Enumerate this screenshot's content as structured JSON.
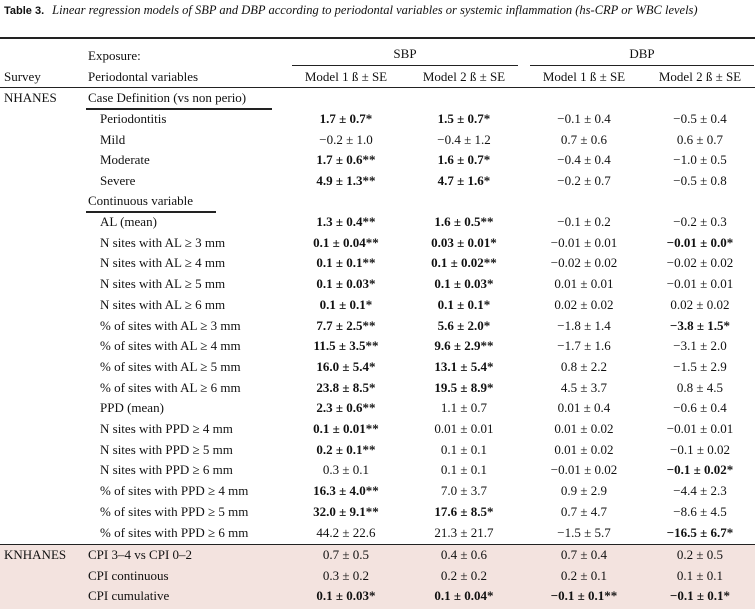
{
  "table": {
    "label": "Table 3.",
    "caption": "Linear regression models of SBP and DBP according to periodontal variables or systemic inflammation (hs-CRP or WBC levels)",
    "headers": {
      "exposure": "Exposure:",
      "survey": "Survey",
      "periodontal_variables": "Periodontal variables",
      "sbp": "SBP",
      "dbp": "DBP",
      "sbp_model1": "Model 1 ß ± SE",
      "sbp_model2": "Model 2 ß ± SE",
      "dbp_model1": "Model 1 ß ± SE",
      "dbp_model2": "Model 2 ß ± SE"
    },
    "surveys": [
      "NHANES",
      "KNHANES"
    ],
    "sections": [
      "Case Definition (vs non perio)",
      "Continuous variable"
    ],
    "rows": [
      {
        "var": "Periodontitis",
        "c": [
          "1.7 ± 0.7*",
          "1.5 ± 0.7*",
          "−0.1 ± 0.4",
          "−0.5 ± 0.4"
        ],
        "b": [
          1,
          1,
          0,
          0
        ]
      },
      {
        "var": "Mild",
        "c": [
          "−0.2 ± 1.0",
          "−0.4 ± 1.2",
          "0.7 ± 0.6",
          "0.6 ± 0.7"
        ],
        "b": [
          0,
          0,
          0,
          0
        ]
      },
      {
        "var": "Moderate",
        "c": [
          "1.7 ± 0.6**",
          "1.6 ± 0.7*",
          "−0.4 ± 0.4",
          "−1.0 ± 0.5"
        ],
        "b": [
          1,
          1,
          0,
          0
        ]
      },
      {
        "var": "Severe",
        "c": [
          "4.9 ± 1.3**",
          "4.7 ± 1.6*",
          "−0.2 ± 0.7",
          "−0.5 ± 0.8"
        ],
        "b": [
          1,
          1,
          0,
          0
        ]
      },
      {
        "var": "AL (mean)",
        "c": [
          "1.3 ± 0.4**",
          "1.6 ± 0.5**",
          "−0.1 ± 0.2",
          "−0.2 ± 0.3"
        ],
        "b": [
          1,
          1,
          0,
          0
        ]
      },
      {
        "var": "N sites with AL ≥ 3 mm",
        "c": [
          "0.1 ± 0.04**",
          "0.03 ± 0.01*",
          "−0.01 ± 0.01",
          "−0.01 ± 0.0*"
        ],
        "b": [
          1,
          1,
          0,
          1
        ]
      },
      {
        "var": "N sites with AL ≥ 4 mm",
        "c": [
          "0.1 ± 0.1**",
          "0.1 ± 0.02**",
          "−0.02 ± 0.02",
          "−0.02 ± 0.02"
        ],
        "b": [
          1,
          1,
          0,
          0
        ]
      },
      {
        "var": "N sites with AL ≥ 5 mm",
        "c": [
          "0.1 ± 0.03*",
          "0.1 ± 0.03*",
          "0.01 ± 0.01",
          "−0.01 ± 0.01"
        ],
        "b": [
          1,
          1,
          0,
          0
        ]
      },
      {
        "var": "N sites with AL ≥ 6 mm",
        "c": [
          "0.1 ± 0.1*",
          "0.1 ± 0.1*",
          "0.02 ± 0.02",
          "0.02 ± 0.02"
        ],
        "b": [
          1,
          1,
          0,
          0
        ]
      },
      {
        "var": "% of sites with AL ≥ 3 mm",
        "c": [
          "7.7 ± 2.5**",
          "5.6 ± 2.0*",
          "−1.8 ± 1.4",
          "−3.8 ± 1.5*"
        ],
        "b": [
          1,
          1,
          0,
          1
        ]
      },
      {
        "var": "% of sites with AL ≥ 4 mm",
        "c": [
          "11.5 ± 3.5**",
          "9.6 ± 2.9**",
          "−1.7 ± 1.6",
          "−3.1 ± 2.0"
        ],
        "b": [
          1,
          1,
          0,
          0
        ]
      },
      {
        "var": "% of sites with AL ≥ 5 mm",
        "c": [
          "16.0 ± 5.4*",
          "13.1 ± 5.4*",
          "0.8 ± 2.2",
          "−1.5 ± 2.9"
        ],
        "b": [
          1,
          1,
          0,
          0
        ]
      },
      {
        "var": "% of sites with AL ≥ 6 mm",
        "c": [
          "23.8 ± 8.5*",
          "19.5 ± 8.9*",
          "4.5 ± 3.7",
          "0.8 ± 4.5"
        ],
        "b": [
          1,
          1,
          0,
          0
        ]
      },
      {
        "var": "PPD (mean)",
        "c": [
          "2.3 ± 0.6**",
          "1.1 ± 0.7",
          "0.01 ± 0.4",
          "−0.6 ± 0.4"
        ],
        "b": [
          1,
          0,
          0,
          0
        ]
      },
      {
        "var": "N sites with PPD ≥ 4 mm",
        "c": [
          "0.1 ± 0.01**",
          "0.01 ± 0.01",
          "0.01 ± 0.02",
          "−0.01 ± 0.01"
        ],
        "b": [
          1,
          0,
          0,
          0
        ]
      },
      {
        "var": "N sites with PPD ≥ 5 mm",
        "c": [
          "0.2 ± 0.1**",
          "0.1 ± 0.1",
          "0.01 ± 0.02",
          "−0.1 ± 0.02"
        ],
        "b": [
          1,
          0,
          0,
          0
        ]
      },
      {
        "var": "N sites with PPD ≥ 6 mm",
        "c": [
          "0.3 ± 0.1",
          "0.1 ± 0.1",
          "−0.01 ± 0.02",
          "−0.1 ± 0.02*"
        ],
        "b": [
          0,
          0,
          0,
          1
        ]
      },
      {
        "var": "% of sites with PPD ≥ 4 mm",
        "c": [
          "16.3 ± 4.0**",
          "7.0 ± 3.7",
          "0.9 ± 2.9",
          "−4.4 ± 2.3"
        ],
        "b": [
          1,
          0,
          0,
          0
        ]
      },
      {
        "var": "% of sites with PPD ≥ 5 mm",
        "c": [
          "32.0 ± 9.1**",
          "17.6 ± 8.5*",
          "0.7 ± 4.7",
          "−8.6 ± 4.5"
        ],
        "b": [
          1,
          1,
          0,
          0
        ]
      },
      {
        "var": "% of sites with PPD ≥ 6 mm",
        "c": [
          "44.2 ± 22.6",
          "21.3 ± 21.7",
          "−1.5 ± 5.7",
          "−16.5 ± 6.7*"
        ],
        "b": [
          0,
          0,
          0,
          1
        ]
      },
      {
        "var": "CPI 3–4 vs CPI 0–2",
        "c": [
          "0.7 ± 0.5",
          "0.4 ± 0.6",
          "0.7 ± 0.4",
          "0.2 ± 0.5"
        ],
        "b": [
          0,
          0,
          0,
          0
        ]
      },
      {
        "var": "CPI continuous",
        "c": [
          "0.3 ± 0.2",
          "0.2 ± 0.2",
          "0.2 ± 0.1",
          "0.1 ± 0.1"
        ],
        "b": [
          0,
          0,
          0,
          0
        ]
      },
      {
        "var": "CPI cumulative",
        "c": [
          "0.1 ± 0.03*",
          "0.1 ± 0.04*",
          "−0.1 ± 0.1**",
          "−0.1 ± 0.1*"
        ],
        "b": [
          1,
          1,
          1,
          1
        ]
      }
    ],
    "colors": {
      "knhanes_band": "#f3e3df",
      "rule": "#222222"
    }
  }
}
